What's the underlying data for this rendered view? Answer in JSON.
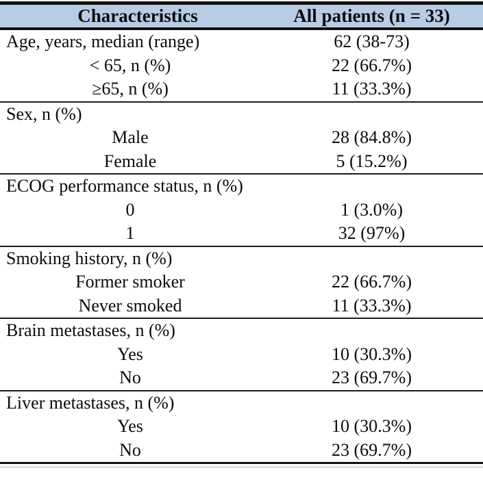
{
  "table": {
    "title_hidden": "",
    "header": {
      "col1": "Characteristics",
      "col2": "All patients (n = 33)"
    },
    "colors": {
      "header_bg": "#b8cce4",
      "rule": "#111111",
      "text": "#0b0b0b"
    },
    "sections": [
      {
        "rows": [
          {
            "label": "Age, years, median (range)",
            "align": "left",
            "value": "62 (38-73)"
          },
          {
            "label": "< 65, n (%)",
            "align": "center",
            "value": "22 (66.7%)"
          },
          {
            "label": "≥65, n (%)",
            "align": "center",
            "value": "11 (33.3%)"
          }
        ]
      },
      {
        "rows": [
          {
            "label": "Sex, n (%)",
            "align": "left",
            "value": ""
          },
          {
            "label": "Male",
            "align": "center",
            "value": "28 (84.8%)"
          },
          {
            "label": "Female",
            "align": "center",
            "value": "5 (15.2%)"
          }
        ]
      },
      {
        "rows": [
          {
            "label": "ECOG performance status, n (%)",
            "align": "left",
            "value": ""
          },
          {
            "label": "0",
            "align": "center",
            "value": "1 (3.0%)"
          },
          {
            "label": "1",
            "align": "center",
            "value": "32 (97%)"
          }
        ]
      },
      {
        "rows": [
          {
            "label": "Smoking history, n (%)",
            "align": "left",
            "value": ""
          },
          {
            "label": "Former smoker",
            "align": "center",
            "value": "22 (66.7%)"
          },
          {
            "label": "Never smoked",
            "align": "center",
            "value": "11 (33.3%)"
          }
        ]
      },
      {
        "rows": [
          {
            "label": "Brain metastases, n (%)",
            "align": "left",
            "value": ""
          },
          {
            "label": "Yes",
            "align": "center",
            "value": "10 (30.3%)"
          },
          {
            "label": "No",
            "align": "center",
            "value": "23 (69.7%)"
          }
        ]
      },
      {
        "rows": [
          {
            "label": "Liver metastases, n (%)",
            "align": "left",
            "value": ""
          },
          {
            "label": "Yes",
            "align": "center",
            "value": "10 (30.3%)"
          },
          {
            "label": "No",
            "align": "center",
            "value": "23 (69.7%)"
          }
        ]
      }
    ]
  }
}
